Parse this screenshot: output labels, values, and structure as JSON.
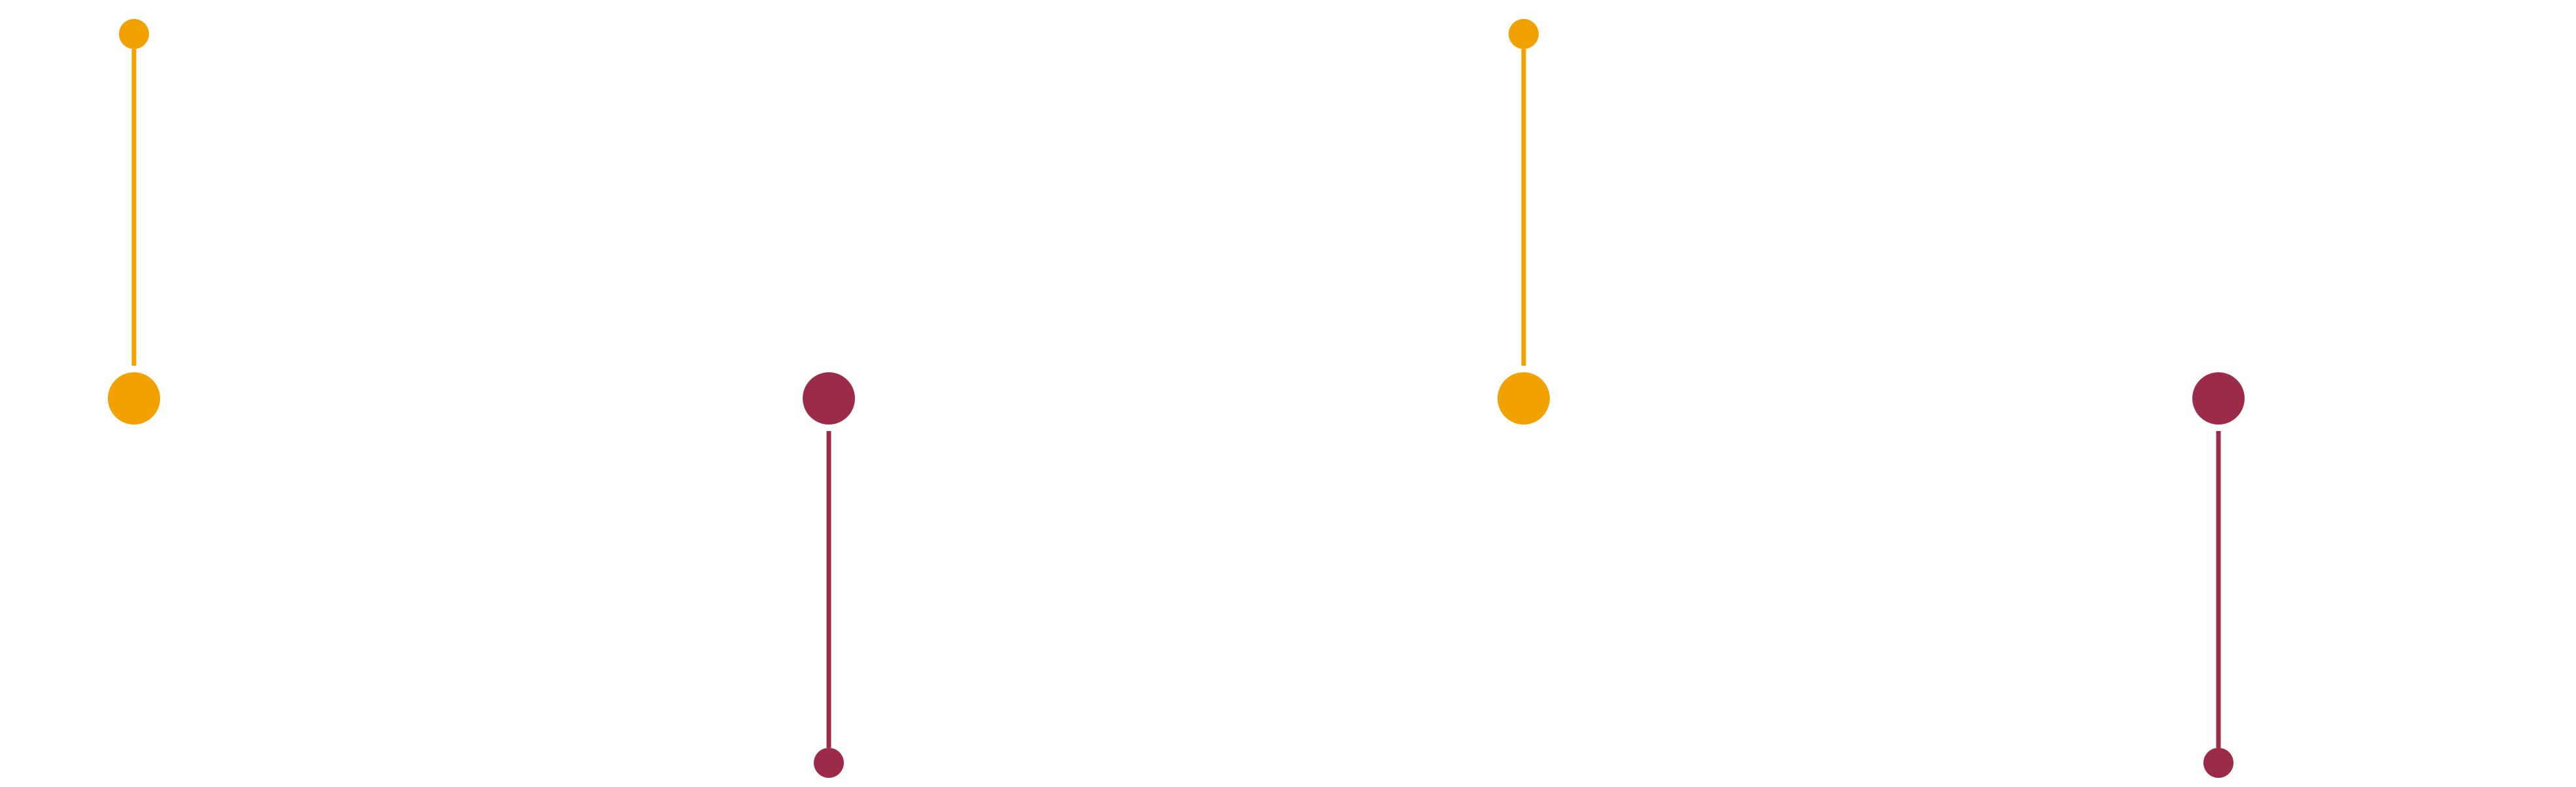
{
  "colors": {
    "upper": "#F2A200",
    "lower": "#9C2B4A",
    "end": "#000000",
    "background": "#FFFFFF"
  },
  "markers": [
    {
      "kind": "upper"
    },
    {
      "kind": "lower"
    },
    {
      "kind": "upper"
    },
    {
      "kind": "lower"
    },
    {
      "kind": "upper"
    },
    {
      "kind": "lower"
    },
    {
      "kind": "upper"
    },
    {
      "kind": "end"
    }
  ]
}
